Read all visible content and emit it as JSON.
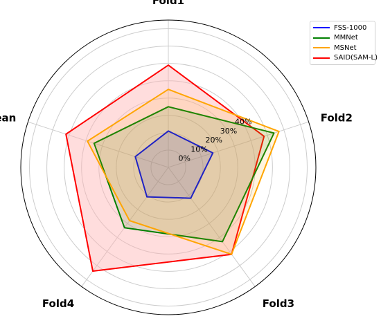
{
  "chart_data": {
    "type": "radar",
    "categories": [
      "Fold1",
      "Fold2",
      "Fold3",
      "Fold4",
      "Mean"
    ],
    "radial_ticks": [
      "0%",
      "10%",
      "20%",
      "30%",
      "40%"
    ],
    "radial_tick_values": [
      0,
      10,
      20,
      30,
      40
    ],
    "rmin": -10,
    "rmax": 75,
    "grid": true,
    "legend": "top-right",
    "series": [
      {
        "name": "FSS-1000",
        "color": "#0000ff",
        "values": [
          11,
          17,
          12,
          11,
          10
        ]
      },
      {
        "name": "MMNet",
        "color": "#008000",
        "values": [
          25,
          54,
          43,
          33,
          35
        ]
      },
      {
        "name": "MSNet",
        "color": "#ffa500",
        "values": [
          35,
          57,
          52,
          28,
          39
        ]
      },
      {
        "name": "SAID(SAM-L)",
        "color": "#ff0000",
        "values": [
          49,
          48,
          52,
          64,
          52
        ],
        "filled": true,
        "fill": "#ffb3b3"
      }
    ]
  }
}
